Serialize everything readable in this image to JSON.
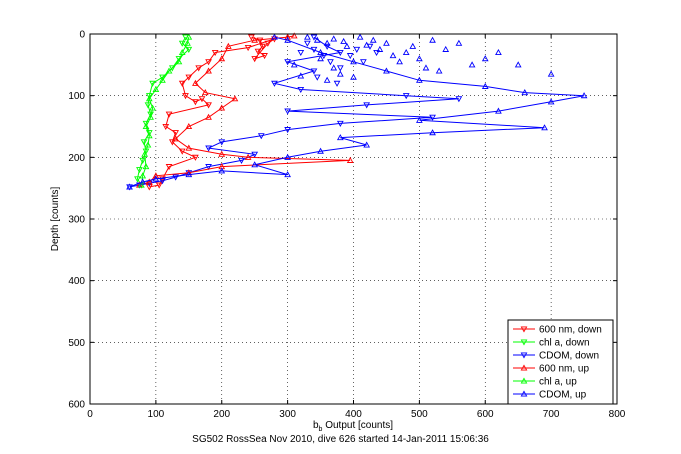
{
  "chart_data": {
    "type": "scatter",
    "title": "",
    "xlabel": "b_b Output [counts]",
    "xlabel_main": "b",
    "xlabel_sub": "b",
    "xlabel_rest": " Output [counts]",
    "ylabel": "Depth [counts]",
    "xlim": [
      0,
      800
    ],
    "ylim": [
      0,
      600
    ],
    "y_reversed": true,
    "grid": true,
    "xticks": [
      "0",
      "100",
      "200",
      "300",
      "400",
      "500",
      "600",
      "700",
      "800"
    ],
    "yticks": [
      "0",
      "100",
      "200",
      "300",
      "400",
      "500",
      "600"
    ],
    "legend_position": "bottom-right",
    "series": [
      {
        "name": "600 nm, down",
        "color": "#ff0000",
        "marker": "triangle-down",
        "connected": true,
        "points": [
          [
            245,
            5
          ],
          [
            258,
            10
          ],
          [
            262,
            20
          ],
          [
            255,
            28
          ],
          [
            265,
            35
          ],
          [
            250,
            40
          ],
          [
            270,
            15
          ],
          [
            280,
            8
          ],
          [
            240,
            22
          ],
          [
            190,
            30
          ],
          [
            180,
            45
          ],
          [
            165,
            55
          ],
          [
            150,
            70
          ],
          [
            140,
            80
          ],
          [
            145,
            100
          ],
          [
            160,
            110
          ],
          [
            170,
            105
          ],
          [
            180,
            115
          ],
          [
            120,
            130
          ],
          [
            115,
            150
          ],
          [
            130,
            160
          ],
          [
            125,
            175
          ],
          [
            140,
            190
          ],
          [
            160,
            200
          ],
          [
            120,
            215
          ],
          [
            110,
            235
          ],
          [
            105,
            245
          ],
          [
            90,
            248
          ]
        ]
      },
      {
        "name": "chl a, down",
        "color": "#00ff00",
        "marker": "triangle-down",
        "connected": true,
        "points": [
          [
            145,
            5
          ],
          [
            140,
            15
          ],
          [
            150,
            25
          ],
          [
            135,
            40
          ],
          [
            125,
            55
          ],
          [
            110,
            70
          ],
          [
            95,
            80
          ],
          [
            90,
            100
          ],
          [
            88,
            115
          ],
          [
            92,
            130
          ],
          [
            85,
            145
          ],
          [
            90,
            160
          ],
          [
            82,
            175
          ],
          [
            85,
            190
          ],
          [
            80,
            205
          ],
          [
            75,
            220
          ],
          [
            72,
            235
          ],
          [
            78,
            245
          ]
        ]
      },
      {
        "name": "CDOM, down",
        "color": "#0000ff",
        "marker": "triangle-down",
        "connected": true,
        "points": [
          [
            340,
            5
          ],
          [
            360,
            20
          ],
          [
            380,
            30
          ],
          [
            300,
            45
          ],
          [
            340,
            60
          ],
          [
            280,
            80
          ],
          [
            320,
            90
          ],
          [
            480,
            100
          ],
          [
            560,
            105
          ],
          [
            420,
            115
          ],
          [
            300,
            125
          ],
          [
            520,
            135
          ],
          [
            380,
            145
          ],
          [
            300,
            155
          ],
          [
            260,
            165
          ],
          [
            200,
            175
          ],
          [
            180,
            185
          ],
          [
            250,
            195
          ],
          [
            230,
            205
          ],
          [
            180,
            215
          ],
          [
            150,
            225
          ],
          [
            130,
            232
          ],
          [
            110,
            238
          ],
          [
            90,
            242
          ],
          [
            75,
            245
          ],
          [
            60,
            248
          ]
        ]
      },
      {
        "name": "600 nm, up",
        "color": "#ff0000",
        "marker": "triangle-up",
        "connected": true,
        "points": [
          [
            75,
            245
          ],
          [
            90,
            240
          ],
          [
            100,
            230
          ],
          [
            150,
            225
          ],
          [
            200,
            215
          ],
          [
            395,
            205
          ],
          [
            240,
            200
          ],
          [
            200,
            195
          ],
          [
            150,
            185
          ],
          [
            130,
            170
          ],
          [
            150,
            150
          ],
          [
            180,
            135
          ],
          [
            200,
            120
          ],
          [
            220,
            105
          ],
          [
            175,
            95
          ],
          [
            160,
            80
          ],
          [
            180,
            60
          ],
          [
            200,
            40
          ],
          [
            210,
            20
          ],
          [
            250,
            10
          ],
          [
            300,
            5
          ],
          [
            310,
            3
          ]
        ]
      },
      {
        "name": "chl a, up",
        "color": "#00ff00",
        "marker": "triangle-up",
        "connected": true,
        "points": [
          [
            78,
            245
          ],
          [
            80,
            230
          ],
          [
            85,
            215
          ],
          [
            83,
            195
          ],
          [
            88,
            180
          ],
          [
            90,
            165
          ],
          [
            85,
            150
          ],
          [
            92,
            135
          ],
          [
            95,
            120
          ],
          [
            90,
            105
          ],
          [
            100,
            90
          ],
          [
            110,
            75
          ],
          [
            120,
            60
          ],
          [
            135,
            45
          ],
          [
            140,
            30
          ],
          [
            148,
            15
          ],
          [
            150,
            5
          ]
        ]
      },
      {
        "name": "CDOM, up",
        "color": "#0000ff",
        "marker": "triangle-up",
        "connected": true,
        "points": [
          [
            60,
            248
          ],
          [
            80,
            240
          ],
          [
            100,
            235
          ],
          [
            150,
            228
          ],
          [
            200,
            222
          ],
          [
            300,
            228
          ],
          [
            250,
            212
          ],
          [
            300,
            200
          ],
          [
            350,
            190
          ],
          [
            420,
            180
          ],
          [
            380,
            168
          ],
          [
            520,
            160
          ],
          [
            690,
            152
          ],
          [
            500,
            140
          ],
          [
            620,
            125
          ],
          [
            700,
            110
          ],
          [
            750,
            100
          ],
          [
            660,
            95
          ],
          [
            600,
            85
          ],
          [
            500,
            75
          ],
          [
            450,
            60
          ],
          [
            400,
            45
          ],
          [
            350,
            30
          ],
          [
            300,
            10
          ],
          [
            280,
            5
          ]
        ]
      }
    ],
    "scatter_series": {
      "cdom_up": [
        [
          330,
          5
        ],
        [
          345,
          10
        ],
        [
          360,
          15
        ],
        [
          370,
          8
        ],
        [
          385,
          12
        ],
        [
          390,
          20
        ],
        [
          410,
          5
        ],
        [
          420,
          18
        ],
        [
          430,
          10
        ],
        [
          440,
          25
        ],
        [
          450,
          15
        ],
        [
          460,
          35
        ],
        [
          470,
          45
        ],
        [
          480,
          30
        ],
        [
          490,
          20
        ],
        [
          500,
          40
        ],
        [
          510,
          55
        ],
        [
          520,
          10
        ],
        [
          530,
          60
        ],
        [
          540,
          25
        ],
        [
          560,
          15
        ],
        [
          580,
          50
        ],
        [
          600,
          40
        ],
        [
          620,
          30
        ],
        [
          650,
          50
        ],
        [
          700,
          65
        ],
        [
          400,
          70
        ],
        [
          380,
          65
        ],
        [
          370,
          55
        ],
        [
          350,
          40
        ],
        [
          360,
          75
        ],
        [
          320,
          68
        ],
        [
          310,
          50
        ]
      ],
      "cdom_down": [
        [
          330,
          15
        ],
        [
          340,
          25
        ],
        [
          355,
          35
        ],
        [
          365,
          45
        ],
        [
          380,
          55
        ],
        [
          395,
          35
        ],
        [
          405,
          25
        ],
        [
          415,
          45
        ],
        [
          425,
          20
        ],
        [
          435,
          30
        ],
        [
          375,
          80
        ],
        [
          345,
          70
        ],
        [
          320,
          30
        ]
      ]
    }
  },
  "caption": "SG502 RossSea Nov 2010, dive 626 started 14-Jan-2011 15:06:36"
}
